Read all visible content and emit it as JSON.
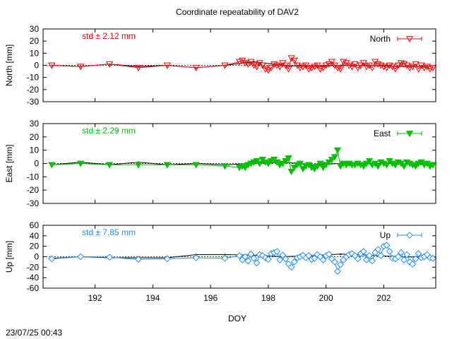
{
  "title": "Coordinate repeatability of DAV2",
  "xlabel": "DOY",
  "timestamp": "23/07/25 00:43",
  "xlim": [
    190.2,
    203.8
  ],
  "xticks": [
    192,
    194,
    196,
    198,
    200,
    202
  ],
  "chart_data": [
    {
      "type": "line",
      "name": "North",
      "ylabel": "North [mm]",
      "std_label": "std ± 2.12 mm",
      "color": "#ff0000",
      "marker": "triangle-down-open",
      "ylim": [
        -30,
        30
      ],
      "yticks": [
        -30,
        -20,
        -10,
        0,
        10,
        20,
        30
      ],
      "legend_position": "top-right",
      "reference": {
        "x": [
          190.5,
          191.5,
          192.5,
          193.5,
          194.5,
          195.5,
          196.5,
          197.5,
          198.5,
          199.5,
          200.5,
          201.5,
          202.5,
          203.5
        ],
        "y": [
          0,
          -1,
          1,
          -1,
          0,
          -2,
          0,
          3,
          0,
          -1,
          0,
          0,
          -1,
          -1
        ]
      },
      "x": [
        190.5,
        191.5,
        192.5,
        193.5,
        194.5,
        195.5,
        196.5,
        197.0,
        197.1,
        197.2,
        197.3,
        197.4,
        197.5,
        197.6,
        197.7,
        197.8,
        197.9,
        198.0,
        198.1,
        198.2,
        198.3,
        198.4,
        198.5,
        198.6,
        198.7,
        198.8,
        198.9,
        199.0,
        199.1,
        199.2,
        199.3,
        199.4,
        199.5,
        199.6,
        199.7,
        199.8,
        199.9,
        200.0,
        200.1,
        200.2,
        200.3,
        200.4,
        200.5,
        200.6,
        200.7,
        200.8,
        200.9,
        201.0,
        201.1,
        201.2,
        201.3,
        201.4,
        201.5,
        201.6,
        201.7,
        201.8,
        201.9,
        202.0,
        202.1,
        202.2,
        202.3,
        202.4,
        202.5,
        202.6,
        202.7,
        202.8,
        202.9,
        203.0,
        203.1,
        203.2,
        203.3,
        203.4,
        203.5,
        203.6,
        203.7
      ],
      "y": [
        0,
        -1,
        1,
        -2,
        0,
        -2,
        0,
        3,
        4,
        2,
        1,
        3,
        0,
        -1,
        2,
        0,
        -3,
        -4,
        -2,
        1,
        0,
        -1,
        2,
        0,
        -3,
        6,
        4,
        0,
        -2,
        -1,
        0,
        -3,
        -2,
        -1,
        0,
        -3,
        -2,
        0,
        1,
        3,
        0,
        -2,
        -3,
        3,
        2,
        0,
        -1,
        1,
        -2,
        0,
        2,
        -1,
        0,
        -2,
        3,
        1,
        0,
        -1,
        -2,
        0,
        -1,
        -3,
        0,
        2,
        1,
        0,
        -2,
        -1,
        1,
        -3,
        0,
        -2,
        -1,
        -3,
        -2
      ]
    },
    {
      "type": "line",
      "name": "East",
      "ylabel": "East [mm]",
      "std_label": "std ± 2.29 mm",
      "color": "#00c000",
      "marker": "triangle-down-filled",
      "ylim": [
        -30,
        30
      ],
      "yticks": [
        -30,
        -20,
        -10,
        0,
        10,
        20,
        30
      ],
      "legend_position": "top-right",
      "reference": {
        "x": [
          190.5,
          191.5,
          192.5,
          193.5,
          194.5,
          195.5,
          196.5,
          197.5,
          198.5,
          199.5,
          200.5,
          201.5,
          202.5,
          203.5
        ],
        "y": [
          -1,
          1,
          -1,
          1,
          -1,
          0,
          -1,
          0,
          1,
          -1,
          0,
          0,
          0,
          -1
        ]
      },
      "x": [
        190.5,
        191.5,
        192.5,
        193.5,
        194.5,
        195.5,
        196.5,
        197.0,
        197.1,
        197.2,
        197.3,
        197.4,
        197.5,
        197.6,
        197.7,
        197.8,
        197.9,
        198.0,
        198.1,
        198.2,
        198.3,
        198.4,
        198.5,
        198.6,
        198.7,
        198.8,
        198.9,
        199.0,
        199.1,
        199.2,
        199.3,
        199.4,
        199.5,
        199.6,
        199.7,
        199.8,
        199.9,
        200.0,
        200.1,
        200.2,
        200.3,
        200.4,
        200.5,
        200.6,
        200.7,
        200.8,
        200.9,
        201.0,
        201.1,
        201.2,
        201.3,
        201.4,
        201.5,
        201.6,
        201.7,
        201.8,
        201.9,
        202.0,
        202.1,
        202.2,
        202.3,
        202.4,
        202.5,
        202.6,
        202.7,
        202.8,
        202.9,
        203.0,
        203.1,
        203.2,
        203.3,
        203.4,
        203.5,
        203.6,
        203.7
      ],
      "y": [
        -1,
        0,
        -1,
        -1,
        -1,
        -1,
        -2,
        -3,
        -2,
        -3,
        -1,
        0,
        1,
        2,
        0,
        3,
        1,
        0,
        2,
        3,
        1,
        -1,
        0,
        2,
        4,
        -6,
        -3,
        -1,
        0,
        -4,
        -2,
        -1,
        -3,
        -4,
        -2,
        0,
        -3,
        -1,
        1,
        3,
        5,
        10,
        -2,
        0,
        -1,
        0,
        -1,
        -1,
        0,
        -1,
        -2,
        0,
        2,
        -1,
        0,
        -2,
        1,
        0,
        -1,
        2,
        0,
        -1,
        1,
        0,
        -2,
        1,
        0,
        -1,
        -2,
        0,
        1,
        -1,
        0,
        -2,
        -1
      ]
    },
    {
      "type": "line",
      "name": "Up",
      "ylabel": "Up [mm]",
      "std_label": "std ± 7.85 mm",
      "color": "#1e90ff",
      "marker": "diamond-open",
      "ylim": [
        -60,
        60
      ],
      "yticks": [
        -60,
        -40,
        -20,
        0,
        20,
        40,
        60
      ],
      "legend_position": "top-right",
      "reference": {
        "x": [
          190.5,
          191.5,
          192.5,
          193.5,
          194.5,
          195.5,
          196.5,
          197.5,
          198.5,
          199.5,
          200.5,
          201.5,
          202.5,
          203.5
        ],
        "y": [
          -3,
          0,
          -2,
          -2,
          -2,
          4,
          4,
          3,
          0,
          2,
          5,
          3,
          0,
          -1
        ]
      },
      "x": [
        190.5,
        191.5,
        192.5,
        193.5,
        194.5,
        195.5,
        196.5,
        197.0,
        197.1,
        197.2,
        197.3,
        197.4,
        197.5,
        197.6,
        197.7,
        197.8,
        197.9,
        198.0,
        198.1,
        198.2,
        198.3,
        198.4,
        198.5,
        198.6,
        198.7,
        198.8,
        198.9,
        199.0,
        199.1,
        199.2,
        199.3,
        199.4,
        199.5,
        199.6,
        199.7,
        199.8,
        199.9,
        200.0,
        200.1,
        200.2,
        200.3,
        200.4,
        200.5,
        200.6,
        200.7,
        200.8,
        200.9,
        201.0,
        201.1,
        201.2,
        201.3,
        201.4,
        201.5,
        201.6,
        201.7,
        201.8,
        201.9,
        202.0,
        202.1,
        202.2,
        202.3,
        202.4,
        202.5,
        202.6,
        202.7,
        202.8,
        202.9,
        203.0,
        203.1,
        203.2,
        203.3,
        203.4,
        203.5,
        203.6,
        203.7
      ],
      "y": [
        -4,
        0,
        -1,
        -5,
        -4,
        -2,
        -3,
        2,
        -6,
        0,
        -8,
        5,
        -3,
        -12,
        4,
        2,
        -2,
        -5,
        6,
        8,
        10,
        -6,
        3,
        -4,
        -14,
        -20,
        -10,
        -2,
        0,
        3,
        -2,
        2,
        -5,
        -3,
        4,
        0,
        -6,
        2,
        5,
        -4,
        -10,
        -28,
        -15,
        -6,
        0,
        4,
        6,
        2,
        -4,
        6,
        10,
        -6,
        2,
        -8,
        8,
        14,
        2,
        20,
        22,
        10,
        -3,
        -4,
        0,
        8,
        -6,
        4,
        -10,
        -14,
        -4,
        6,
        -2,
        0,
        4,
        -2,
        -3
      ]
    }
  ]
}
